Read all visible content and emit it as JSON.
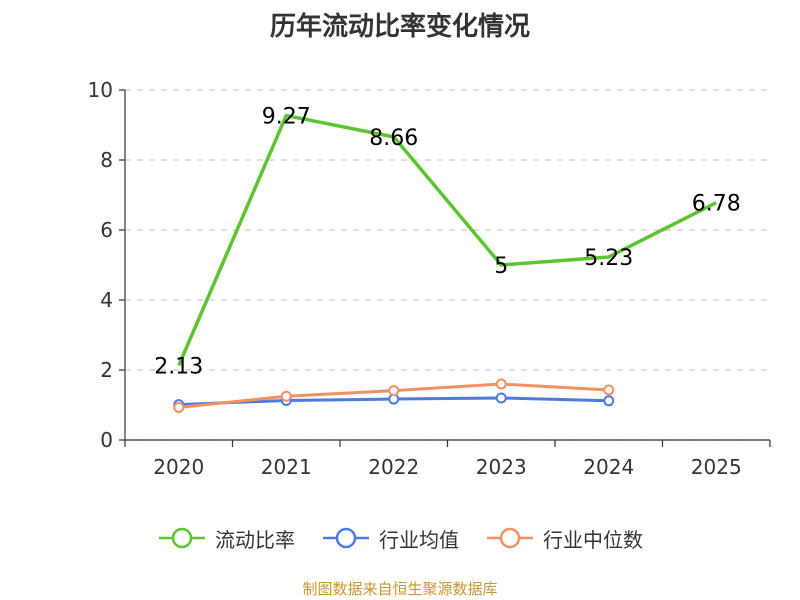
{
  "title": "历年流动比率变化情况",
  "source": "制图数据来自恒生聚源数据库",
  "colors": {
    "source_text": "#c8962e",
    "axis": "#333333",
    "grid": "#cccccc",
    "tick_text": "#333333"
  },
  "legend": {
    "items": [
      {
        "label": "流动比率",
        "color": "#5cc430"
      },
      {
        "label": "行业均值",
        "color": "#4e79e0"
      },
      {
        "label": "行业中位数",
        "color": "#f39062"
      }
    ]
  },
  "chart_data": {
    "type": "line",
    "title": "历年流动比率变化情况",
    "categories": [
      "2020",
      "2021",
      "2022",
      "2023",
      "2024",
      "2025"
    ],
    "ylim": [
      0,
      10
    ],
    "yticks": [
      0,
      2,
      4,
      6,
      8,
      10
    ],
    "grid": true,
    "legend_position": "bottom",
    "series": [
      {
        "name": "流动比率",
        "color": "#5cc430",
        "values": [
          2.13,
          9.27,
          8.66,
          5,
          5.23,
          6.78
        ],
        "labels": [
          "2.13",
          "9.27",
          "8.66",
          "5",
          "5.23",
          "6.78"
        ],
        "show_points": false
      },
      {
        "name": "行业均值",
        "color": "#4e79e0",
        "values": [
          1.01,
          1.13,
          1.17,
          1.2,
          1.12,
          null
        ],
        "show_points": true
      },
      {
        "name": "行业中位数",
        "color": "#f39062",
        "values": [
          0.93,
          1.25,
          1.41,
          1.6,
          1.43,
          null
        ],
        "show_points": true
      }
    ]
  }
}
